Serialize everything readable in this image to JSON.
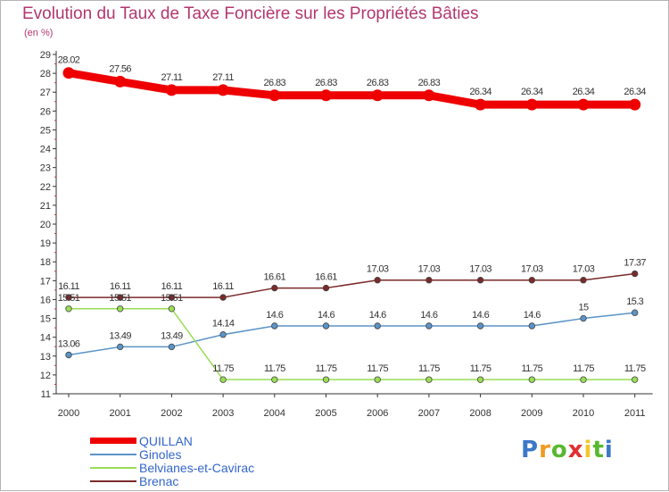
{
  "header": {
    "title": "Evolution du Taux de Taxe Foncière sur les Propriétés Bâties",
    "subtitle": "(en %)"
  },
  "chart_data": {
    "type": "line",
    "title": "Evolution du Taux de Taxe Foncière sur les Propriétés Bâties",
    "ylabel": "(en %)",
    "xlabel": "",
    "categories": [
      "2000",
      "2001",
      "2002",
      "2003",
      "2004",
      "2005",
      "2006",
      "2007",
      "2008",
      "2009",
      "2010",
      "2011"
    ],
    "ylim": [
      11,
      29
    ],
    "yticks": [
      11,
      12,
      13,
      14,
      15,
      16,
      17,
      18,
      19,
      20,
      21,
      22,
      23,
      24,
      25,
      26,
      27,
      28,
      29
    ],
    "series": [
      {
        "name": "QUILLAN",
        "color": "#ee0000",
        "labels": [
          "28.02",
          "27.56",
          "27.11",
          "27.11",
          "26.83",
          "26.83",
          "26.83",
          "26.83",
          "26.34",
          "26.34",
          "26.34",
          "26.34"
        ],
        "values": [
          28.02,
          27.56,
          27.11,
          27.11,
          26.83,
          26.83,
          26.83,
          26.83,
          26.34,
          26.34,
          26.34,
          26.34
        ]
      },
      {
        "name": "Ginoles",
        "color": "#5b94c8",
        "labels": [
          "13.06",
          "13.49",
          "13.49",
          "14.14",
          "14.6",
          "14.6",
          "14.6",
          "14.6",
          "14.6",
          "14.6",
          "15",
          "15.3"
        ],
        "values": [
          13.06,
          13.49,
          13.49,
          14.14,
          14.6,
          14.6,
          14.6,
          14.6,
          14.6,
          14.6,
          15,
          15.3
        ]
      },
      {
        "name": "Belvianes-et-Cavirac",
        "color": "#99dd55",
        "labels": [
          "15.51",
          "15.51",
          "15.51",
          "11.75",
          "11.75",
          "11.75",
          "11.75",
          "11.75",
          "11.75",
          "11.75",
          "11.75",
          "11.75"
        ],
        "values": [
          15.51,
          15.51,
          15.51,
          11.75,
          11.75,
          11.75,
          11.75,
          11.75,
          11.75,
          11.75,
          11.75,
          11.75
        ]
      },
      {
        "name": "Brenac",
        "color": "#7a2a2a",
        "labels": [
          "16.11",
          "16.11",
          "16.11",
          "16.11",
          "16.61",
          "16.61",
          "17.03",
          "17.03",
          "17.03",
          "17.03",
          "17.03",
          "17.37"
        ],
        "values": [
          16.11,
          16.11,
          16.11,
          16.11,
          16.61,
          16.61,
          17.03,
          17.03,
          17.03,
          17.03,
          17.03,
          17.37
        ]
      }
    ],
    "legend_position": "bottom-left"
  },
  "legend": {
    "items": [
      {
        "label": "QUILLAN",
        "color": "#ee0000"
      },
      {
        "label": "Ginoles",
        "color": "#5b94c8"
      },
      {
        "label": "Belvianes-et-Cavirac",
        "color": "#99dd55"
      },
      {
        "label": "Brenac",
        "color": "#7a2a2a"
      }
    ]
  },
  "logo": {
    "letters": [
      "P",
      "r",
      "o",
      "x",
      "i",
      "t",
      "i"
    ],
    "colors": [
      "#3c78c8",
      "#f09a20",
      "#58b830",
      "#e03030",
      "#f2c72a",
      "#58b830",
      "#3c78c8"
    ]
  }
}
